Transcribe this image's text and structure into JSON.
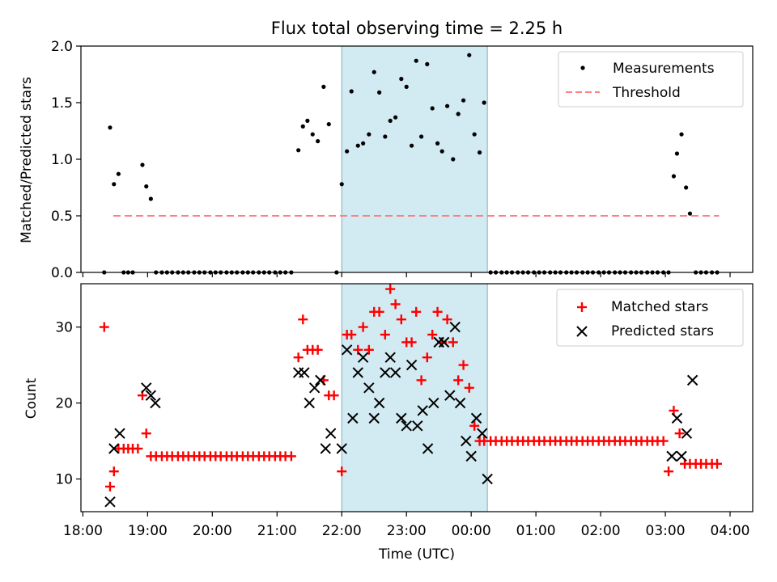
{
  "figure": {
    "title": "Flux total observing time = 2.25 h"
  },
  "chart_data": [
    {
      "type": "scatter",
      "ylabel": "Matched/Predicted stars",
      "ylim": [
        0,
        2.0
      ],
      "yticks": [
        "0.0",
        "0.5",
        "1.0",
        "1.5",
        "2.0"
      ],
      "xticks": [
        18,
        19,
        20,
        21,
        22,
        23,
        24,
        25,
        26,
        27,
        28
      ],
      "xlim": [
        17.97,
        28.35
      ],
      "grid": false,
      "legend_placement": "upper right",
      "shaded_interval": [
        22.0,
        24.25
      ],
      "shade_color": "#add8e6",
      "series": [
        {
          "name": "Measurements",
          "marker": "dot",
          "color": "#000000",
          "x": [
            18.33,
            18.42,
            18.48,
            18.55,
            18.63,
            18.7,
            18.77,
            18.92,
            18.98,
            19.05,
            19.13,
            19.22,
            19.3,
            19.38,
            19.47,
            19.55,
            19.63,
            19.72,
            19.8,
            19.88,
            19.97,
            20.05,
            20.13,
            20.22,
            20.3,
            20.38,
            20.47,
            20.55,
            20.63,
            20.72,
            20.8,
            20.88,
            20.97,
            21.05,
            21.13,
            21.22,
            21.33,
            21.4,
            21.47,
            21.55,
            21.63,
            21.72,
            21.8,
            21.92,
            22.0,
            22.08,
            22.15,
            22.25,
            22.33,
            22.42,
            22.5,
            22.58,
            22.67,
            22.75,
            22.83,
            22.92,
            23.0,
            23.08,
            23.15,
            23.23,
            23.32,
            23.4,
            23.48,
            23.55,
            23.63,
            23.72,
            23.8,
            23.88,
            23.97,
            24.05,
            24.13,
            24.2,
            24.3,
            24.38,
            24.47,
            24.55,
            24.63,
            24.72,
            24.8,
            24.88,
            24.97,
            25.05,
            25.13,
            25.22,
            25.3,
            25.38,
            25.47,
            25.55,
            25.63,
            25.72,
            25.8,
            25.88,
            25.97,
            26.05,
            26.13,
            26.22,
            26.3,
            26.38,
            26.47,
            26.55,
            26.63,
            26.72,
            26.8,
            26.88,
            26.97,
            27.05,
            27.13,
            27.18,
            27.25,
            27.32,
            27.38,
            27.47,
            27.55,
            27.63,
            27.72,
            27.8
          ],
          "y": [
            0,
            1.28,
            0.78,
            0.87,
            0,
            0,
            0,
            0.95,
            0.76,
            0.65,
            0,
            0,
            0,
            0,
            0,
            0,
            0,
            0,
            0,
            0,
            0,
            0,
            0,
            0,
            0,
            0,
            0,
            0,
            0,
            0,
            0,
            0,
            0,
            0,
            0,
            0,
            1.08,
            1.29,
            1.34,
            1.22,
            1.16,
            1.64,
            1.31,
            0,
            0.78,
            1.07,
            1.6,
            1.12,
            1.14,
            1.22,
            1.77,
            1.59,
            1.2,
            1.34,
            1.37,
            1.71,
            1.64,
            1.12,
            1.87,
            1.2,
            1.84,
            1.45,
            1.14,
            1.07,
            1.47,
            1.0,
            1.4,
            1.52,
            1.92,
            1.22,
            1.06,
            1.5,
            0,
            0,
            0,
            0,
            0,
            0,
            0,
            0,
            0,
            0,
            0,
            0,
            0,
            0,
            0,
            0,
            0,
            0,
            0,
            0,
            0,
            0,
            0,
            0,
            0,
            0,
            0,
            0,
            0,
            0,
            0,
            0,
            0,
            0,
            0.85,
            1.05,
            1.22,
            0.75,
            0.52,
            0,
            0,
            0,
            0,
            0
          ]
        },
        {
          "name": "Threshold",
          "marker": "dashed-line",
          "color": "#ff7f7f",
          "x": [
            18.47,
            27.83
          ],
          "y": [
            0.5,
            0.5
          ]
        }
      ]
    },
    {
      "type": "scatter",
      "xlabel": "Time (UTC)",
      "ylabel": "Count",
      "ylim": [
        5.7,
        35.7
      ],
      "yticks": [
        "10",
        "20",
        "30"
      ],
      "xlim": [
        17.97,
        28.35
      ],
      "xtick_labels": [
        "18:00",
        "19:00",
        "20:00",
        "21:00",
        "22:00",
        "23:00",
        "00:00",
        "01:00",
        "02:00",
        "03:00",
        "04:00"
      ],
      "xticks": [
        18,
        19,
        20,
        21,
        22,
        23,
        24,
        25,
        26,
        27,
        28
      ],
      "grid": false,
      "legend_placement": "upper right",
      "shaded_interval": [
        22.0,
        24.25
      ],
      "shade_color": "#add8e6",
      "series": [
        {
          "name": "Matched stars",
          "marker": "plus",
          "color": "#ff0000",
          "x": [
            18.33,
            18.42,
            18.48,
            18.55,
            18.63,
            18.7,
            18.77,
            18.85,
            18.92,
            18.98,
            19.05,
            19.13,
            19.22,
            19.3,
            19.38,
            19.47,
            19.55,
            19.63,
            19.72,
            19.8,
            19.88,
            19.97,
            20.05,
            20.13,
            20.22,
            20.3,
            20.38,
            20.47,
            20.55,
            20.63,
            20.72,
            20.8,
            20.88,
            20.97,
            21.05,
            21.13,
            21.22,
            21.33,
            21.4,
            21.47,
            21.55,
            21.63,
            21.72,
            21.8,
            21.88,
            22.0,
            22.08,
            22.15,
            22.25,
            22.33,
            22.42,
            22.5,
            22.58,
            22.67,
            22.75,
            22.83,
            22.92,
            23.0,
            23.08,
            23.15,
            23.23,
            23.32,
            23.4,
            23.48,
            23.55,
            23.63,
            23.72,
            23.8,
            23.88,
            23.97,
            24.05,
            24.13,
            24.2,
            24.3,
            24.38,
            24.47,
            24.55,
            24.63,
            24.72,
            24.8,
            24.88,
            24.97,
            25.05,
            25.13,
            25.22,
            25.3,
            25.38,
            25.47,
            25.55,
            25.63,
            25.72,
            25.8,
            25.88,
            25.97,
            26.05,
            26.13,
            26.22,
            26.3,
            26.38,
            26.47,
            26.55,
            26.63,
            26.72,
            26.8,
            26.88,
            26.97,
            27.05,
            27.13,
            27.22,
            27.3,
            27.38,
            27.47,
            27.55,
            27.63,
            27.72,
            27.8
          ],
          "y": [
            30,
            9,
            11,
            14,
            14,
            14,
            14,
            14,
            21,
            16,
            13,
            13,
            13,
            13,
            13,
            13,
            13,
            13,
            13,
            13,
            13,
            13,
            13,
            13,
            13,
            13,
            13,
            13,
            13,
            13,
            13,
            13,
            13,
            13,
            13,
            13,
            13,
            26,
            31,
            27,
            27,
            27,
            23,
            21,
            21,
            11,
            29,
            29,
            27,
            30,
            27,
            32,
            32,
            29,
            35,
            33,
            31,
            28,
            28,
            32,
            23,
            26,
            29,
            32,
            28,
            31,
            28,
            23,
            25,
            22,
            17,
            15,
            15,
            15,
            15,
            15,
            15,
            15,
            15,
            15,
            15,
            15,
            15,
            15,
            15,
            15,
            15,
            15,
            15,
            15,
            15,
            15,
            15,
            15,
            15,
            15,
            15,
            15,
            15,
            15,
            15,
            15,
            15,
            15,
            15,
            15,
            11,
            19,
            16,
            12,
            12,
            12,
            12,
            12,
            12,
            12
          ]
        },
        {
          "name": "Predicted stars",
          "marker": "x",
          "color": "#000000",
          "x": [
            18.42,
            18.48,
            18.57,
            18.98,
            19.05,
            19.12,
            21.33,
            21.42,
            21.5,
            21.58,
            21.67,
            21.75,
            21.83,
            22.0,
            22.08,
            22.17,
            22.25,
            22.33,
            22.42,
            22.5,
            22.58,
            22.67,
            22.75,
            22.83,
            22.92,
            23.0,
            23.08,
            23.17,
            23.25,
            23.33,
            23.42,
            23.5,
            23.58,
            23.67,
            23.75,
            23.83,
            23.92,
            24.0,
            24.08,
            24.17,
            24.25,
            27.1,
            27.18,
            27.25,
            27.33,
            27.42
          ],
          "y": [
            7,
            14,
            16,
            22,
            21,
            20,
            24,
            24,
            20,
            22,
            23,
            14,
            16,
            14,
            27,
            18,
            24,
            26,
            22,
            18,
            20,
            24,
            26,
            24,
            18,
            17,
            25,
            17,
            19,
            14,
            20,
            28,
            28,
            21,
            30,
            20,
            15,
            13,
            18,
            16,
            10,
            13,
            18,
            13,
            16,
            23
          ]
        }
      ]
    }
  ]
}
